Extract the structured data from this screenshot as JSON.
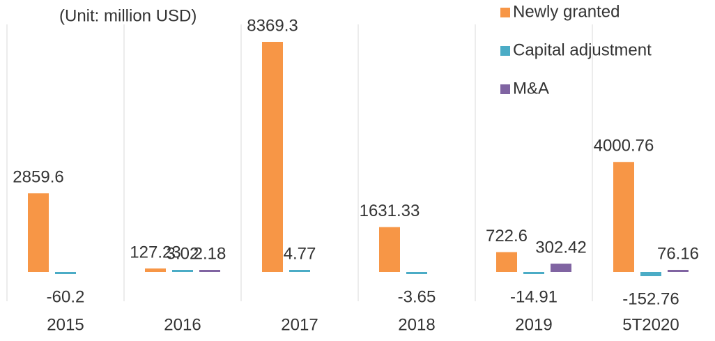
{
  "chart_data": {
    "type": "bar",
    "subtitle": "(Unit: million USD)",
    "categories": [
      "2015",
      "2016",
      "2017",
      "2018",
      "2019",
      "5T2020"
    ],
    "series": [
      {
        "name": "Newly granted",
        "color": "#f79646",
        "values": [
          2859.6,
          127.23,
          8369.3,
          1631.33,
          722.6,
          4000.76
        ]
      },
      {
        "name": "Capital adjustment",
        "color": "#4bacc6",
        "values": [
          -60.2,
          3.02,
          4.77,
          -3.65,
          -14.91,
          -152.76
        ]
      },
      {
        "name": "M&A",
        "color": "#8064a2",
        "values": [
          null,
          2.18,
          null,
          null,
          302.42,
          76.16
        ]
      }
    ],
    "legend": "top-right"
  }
}
